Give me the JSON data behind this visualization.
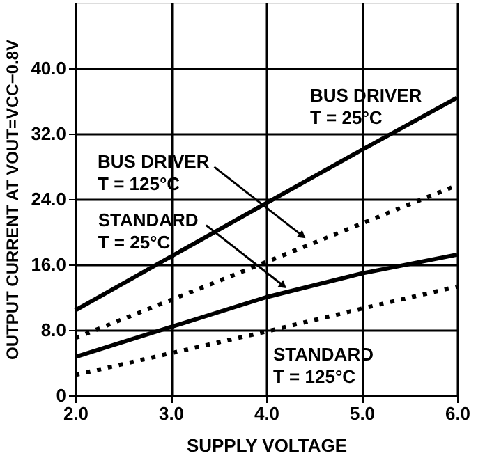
{
  "chart_data": {
    "type": "line",
    "xlabel": "SUPPLY VOLTAGE",
    "ylabel": "OUTPUT CURRENT AT VOUT=VCC−0.8V",
    "x": [
      2.0,
      4.0,
      5.0,
      6.0
    ],
    "series": [
      {
        "color": "#000000",
        "line_style": "solid",
        "values": [
          10.4,
          23.5,
          30.0,
          36.4
        ]
      },
      {
        "color": "#000000",
        "line_style": "dotted",
        "values": [
          7.0,
          16.3,
          21.0,
          25.7
        ]
      },
      {
        "color": "#000000",
        "line_style": "solid",
        "values": [
          4.7,
          12.0,
          14.9,
          17.2
        ]
      },
      {
        "color": "#000000",
        "line_style": "dotted",
        "values": [
          2.5,
          7.8,
          10.6,
          13.3
        ]
      }
    ],
    "xlim": [
      2.0,
      6.0
    ],
    "xticks": [
      {
        "value": 2,
        "label": "2.0"
      },
      {
        "value": 3,
        "label": "3.0"
      },
      {
        "value": 4,
        "label": "4.0"
      },
      {
        "value": 5,
        "label": "5.0"
      },
      {
        "value": 6,
        "label": "6.0"
      }
    ],
    "ylim": [
      0,
      48
    ],
    "yticks": [
      0,
      {
        "value": 8,
        "label": "8.0"
      },
      {
        "value": 16,
        "label": "16.0"
      },
      {
        "value": 24,
        "label": "24.0"
      },
      {
        "value": 32,
        "label": "32.0"
      },
      {
        "value": 40,
        "label": "40.0"
      }
    ],
    "grid": true,
    "marker": "none",
    "annotations": [
      {
        "text": "BUS DRIVER\nT = 25°C",
        "x": 5.0,
        "y": 30.0
      },
      {
        "text": "BUS DRIVER\nT = 125°C",
        "x": 4.38,
        "y": 19.5
      },
      {
        "text": "STANDARD\nT = 25°C",
        "x": 4.18,
        "y": 13.4
      },
      {
        "text": "STANDARD\nT = 125°C",
        "x": 4.0,
        "y": 7.8
      }
    ]
  }
}
